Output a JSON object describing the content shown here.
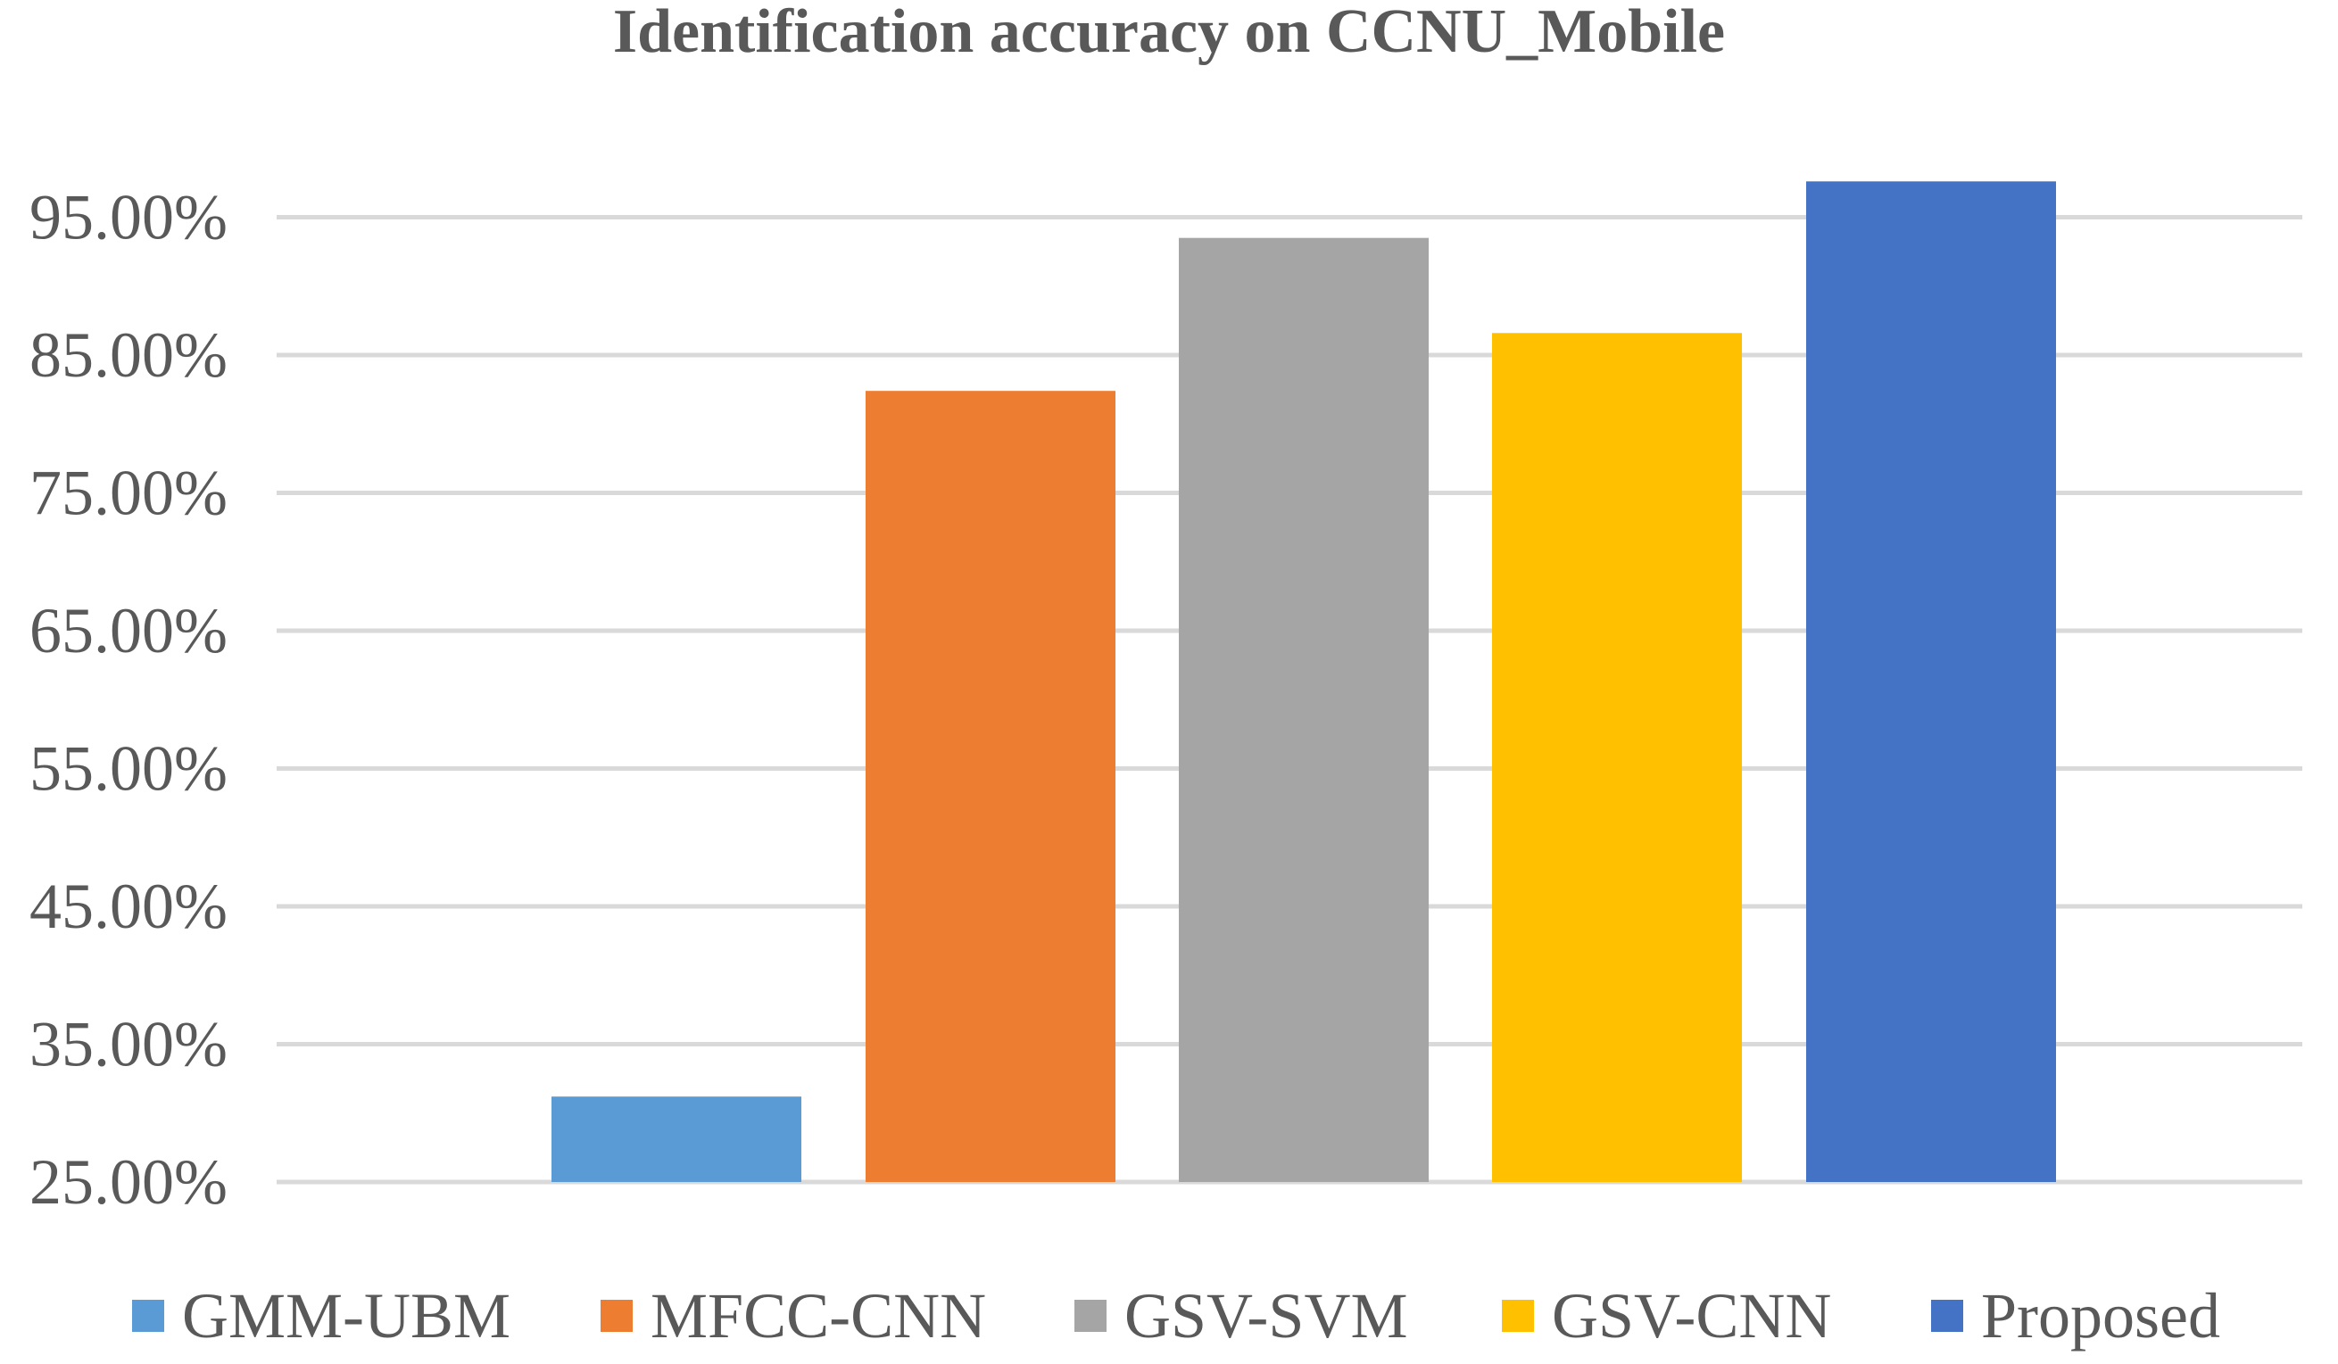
{
  "chart_data": {
    "type": "bar",
    "title": "Identification accuracy on CCNU_Mobile",
    "xlabel": "",
    "ylabel": "",
    "ylim": [
      25,
      97
    ],
    "yticks": [
      25,
      35,
      45,
      55,
      65,
      75,
      85,
      95
    ],
    "ytick_labels": [
      "25.00%",
      "35.00%",
      "45.00%",
      "55.00%",
      "65.00%",
      "75.00%",
      "85.00%",
      "95.00%"
    ],
    "grid": true,
    "legend_position": "bottom",
    "series": [
      {
        "name": "GMM-UBM",
        "color": "#5B9BD5",
        "value": 31.2
      },
      {
        "name": "MFCC-CNN",
        "color": "#ED7D31",
        "value": 82.4
      },
      {
        "name": "GSV-SVM",
        "color": "#A5A5A5",
        "value": 93.5
      },
      {
        "name": "GSV-CNN",
        "color": "#FFC000",
        "value": 86.6
      },
      {
        "name": "Proposed",
        "color": "#4472C4",
        "value": 97.6
      }
    ]
  }
}
